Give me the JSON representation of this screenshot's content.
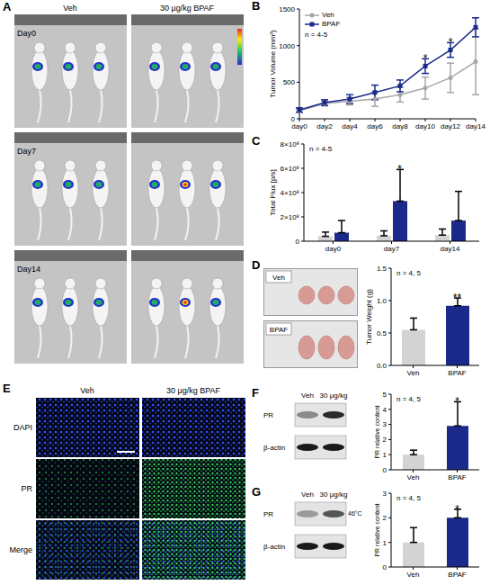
{
  "images": {
    "A": {
      "panel": "A",
      "columns": [
        "Veh",
        "30 μg/kg BPAF"
      ],
      "rows": [
        "Day0",
        "Day7",
        "Day14"
      ]
    },
    "D": {
      "panel": "D",
      "labels": [
        "Veh",
        "BPAF"
      ]
    },
    "E": {
      "panel": "E",
      "columns": [
        "Veh",
        "30 μg/kg BPAF"
      ],
      "rows": [
        "DAPI",
        "PR",
        "Merge"
      ]
    },
    "F": {
      "panel": "F",
      "columns": [
        "Veh",
        "30 μg/kg"
      ],
      "rows": [
        "PR",
        "β-actin"
      ]
    },
    "G": {
      "panel": "G",
      "columns": [
        "Veh",
        "30 μg/kg"
      ],
      "rows": [
        "PR",
        "β-actin"
      ],
      "band_label": "46°C"
    }
  },
  "chart_data": [
    {
      "panel": "B",
      "type": "line",
      "ylabel": "Tumor Volume (mm³)",
      "categories": [
        "day0",
        "day2",
        "day4",
        "day6",
        "day8",
        "day10",
        "day12",
        "day14"
      ],
      "series": [
        {
          "name": "Veh",
          "color": "#a6a6a6",
          "marker": "circle",
          "values": [
            110,
            210,
            240,
            270,
            330,
            420,
            560,
            780
          ],
          "errors": [
            20,
            30,
            50,
            100,
            100,
            150,
            200,
            450
          ]
        },
        {
          "name": "BPAF",
          "color": "#1b2a8a",
          "marker": "square",
          "values": [
            120,
            220,
            270,
            360,
            450,
            720,
            940,
            1250
          ],
          "errors": [
            30,
            40,
            60,
            100,
            80,
            100,
            100,
            130
          ]
        }
      ],
      "ylim": [
        0,
        1500
      ],
      "yticks": [
        0,
        500,
        1000,
        1500
      ],
      "legend": "upper left",
      "annotations": [
        {
          "text": "n = 4-5"
        },
        {
          "text": "*",
          "x": "day10",
          "series": "BPAF"
        },
        {
          "text": "*",
          "x": "day12",
          "series": "BPAF"
        }
      ]
    },
    {
      "panel": "C",
      "type": "bar",
      "ylabel": "Total Flux [p/s]",
      "categories": [
        "day0",
        "day7",
        "day14"
      ],
      "series": [
        {
          "name": "Veh",
          "color": "#d3d3d3",
          "values": [
            40000000,
            45000000,
            50000000
          ],
          "errors": [
            35000000,
            40000000,
            50000000
          ]
        },
        {
          "name": "BPAF",
          "color": "#1b2a8a",
          "values": [
            70000000,
            330000000,
            170000000
          ],
          "errors": [
            100000000,
            260000000,
            240000000
          ]
        }
      ],
      "ylim": [
        0,
        800000000
      ],
      "yticks": [
        0,
        {
          "value": 200000000,
          "label": "2×10⁸"
        },
        {
          "value": 400000000,
          "label": "4×10⁸"
        },
        {
          "value": 600000000,
          "label": "6×10⁸"
        },
        {
          "value": 800000000,
          "label": "8×10⁸"
        }
      ],
      "annotations": [
        {
          "text": "n = 4-5"
        },
        {
          "text": "*",
          "x": "day7",
          "series": "BPAF"
        }
      ]
    },
    {
      "type": "bar",
      "ylabel": "Tumor Weight (g)",
      "categories": [
        "Veh",
        "BPAF"
      ],
      "values": [
        0.55,
        0.92
      ],
      "errors": [
        0.18,
        0.12
      ],
      "colors": [
        "#d3d3d3",
        "#1b2a8a"
      ],
      "ylim": [
        0,
        1.5
      ],
      "yticks": [
        {
          "value": 0,
          "label": "0.0"
        },
        0.5,
        {
          "value": 1,
          "label": "1.0"
        },
        1.5
      ],
      "annotations": [
        {
          "text": "n = 4, 5"
        },
        {
          "text": "**",
          "x": "BPAF"
        }
      ]
    },
    {
      "type": "bar",
      "ylabel": "PR relative content",
      "categories": [
        "Veh",
        "BPAF"
      ],
      "values": [
        1.0,
        2.9
      ],
      "errors": [
        0.3,
        1.6
      ],
      "colors": [
        "#d3d3d3",
        "#1b2a8a"
      ],
      "ylim": [
        0,
        5
      ],
      "yticks": [
        0,
        1,
        2,
        3,
        4,
        5
      ],
      "annotations": [
        {
          "text": "n = 4, 5"
        },
        {
          "text": "*",
          "x": "BPAF"
        }
      ]
    },
    {
      "type": "bar",
      "ylabel": "PR relative content",
      "categories": [
        "Veh",
        "BPAF"
      ],
      "values": [
        1.0,
        2.0
      ],
      "errors": [
        0.6,
        0.35
      ],
      "colors": [
        "#d3d3d3",
        "#1b2a8a"
      ],
      "ylim": [
        0,
        3
      ],
      "yticks": [
        0,
        1,
        2,
        3
      ],
      "annotations": [
        {
          "text": "n = 4, 5"
        },
        {
          "text": "*",
          "x": "BPAF"
        }
      ]
    }
  ]
}
